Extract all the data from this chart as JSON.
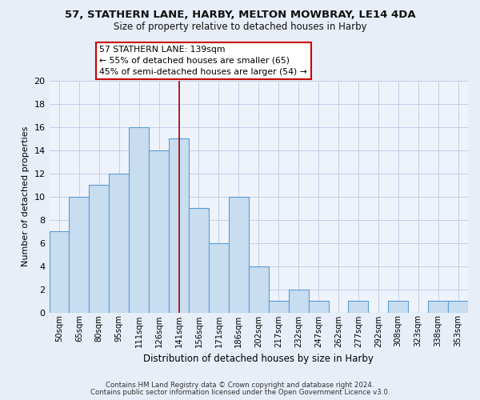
{
  "title": "57, STATHERN LANE, HARBY, MELTON MOWBRAY, LE14 4DA",
  "subtitle": "Size of property relative to detached houses in Harby",
  "xlabel": "Distribution of detached houses by size in Harby",
  "ylabel": "Number of detached properties",
  "bar_labels": [
    "50sqm",
    "65sqm",
    "80sqm",
    "95sqm",
    "111sqm",
    "126sqm",
    "141sqm",
    "156sqm",
    "171sqm",
    "186sqm",
    "202sqm",
    "217sqm",
    "232sqm",
    "247sqm",
    "262sqm",
    "277sqm",
    "292sqm",
    "308sqm",
    "323sqm",
    "338sqm",
    "353sqm"
  ],
  "bar_values": [
    7,
    10,
    11,
    12,
    16,
    14,
    15,
    9,
    6,
    10,
    4,
    1,
    2,
    1,
    0,
    1,
    0,
    1,
    0,
    1,
    1
  ],
  "bar_color": "#c8ddf0",
  "bar_edge_color": "#5b9bd5",
  "vline_x": 6,
  "vline_color": "#aa0000",
  "annotation_line1": "57 STATHERN LANE: 139sqm",
  "annotation_line2": "← 55% of detached houses are smaller (65)",
  "annotation_line3": "45% of semi-detached houses are larger (54) →",
  "annotation_box_edgecolor": "#cc0000",
  "ylim": [
    0,
    20
  ],
  "yticks": [
    0,
    2,
    4,
    6,
    8,
    10,
    12,
    14,
    16,
    18,
    20
  ],
  "footer_line1": "Contains HM Land Registry data © Crown copyright and database right 2024.",
  "footer_line2": "Contains public sector information licensed under the Open Government Licence v3.0.",
  "background_color": "#e8eef8",
  "plot_background_color": "#eef3fb",
  "grid_color": "#c0cfe8",
  "title_fontsize": 9.5,
  "subtitle_fontsize": 8.5
}
